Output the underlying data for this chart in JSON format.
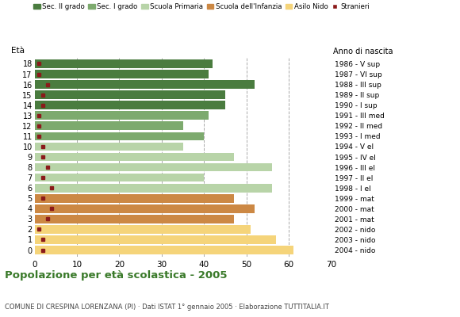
{
  "ages": [
    18,
    17,
    16,
    15,
    14,
    13,
    12,
    11,
    10,
    9,
    8,
    7,
    6,
    5,
    4,
    3,
    2,
    1,
    0
  ],
  "years": [
    "1986 - V sup",
    "1987 - VI sup",
    "1988 - III sup",
    "1989 - II sup",
    "1990 - I sup",
    "1991 - III med",
    "1992 - II med",
    "1993 - I med",
    "1994 - V el",
    "1995 - IV el",
    "1996 - III el",
    "1997 - II el",
    "1998 - I el",
    "1999 - mat",
    "2000 - mat",
    "2001 - mat",
    "2002 - nido",
    "2003 - nido",
    "2004 - nido"
  ],
  "values": [
    42,
    41,
    52,
    45,
    45,
    41,
    35,
    40,
    35,
    47,
    56,
    40,
    56,
    47,
    52,
    47,
    51,
    57,
    61
  ],
  "foreigners": [
    1,
    1,
    3,
    2,
    2,
    1,
    1,
    1,
    2,
    2,
    3,
    2,
    4,
    2,
    4,
    3,
    1,
    2,
    2
  ],
  "bar_colors": {
    "Sec. II grado": "#4a7c3f",
    "Sec. I grado": "#7daa6e",
    "Scuola Primaria": "#b8d4a8",
    "Scuola dell'Infanzia": "#cc8844",
    "Asilo Nido": "#f5d47a"
  },
  "age_to_school": {
    "18": "Sec. II grado",
    "17": "Sec. II grado",
    "16": "Sec. II grado",
    "15": "Sec. II grado",
    "14": "Sec. II grado",
    "13": "Sec. I grado",
    "12": "Sec. I grado",
    "11": "Sec. I grado",
    "10": "Scuola Primaria",
    "9": "Scuola Primaria",
    "8": "Scuola Primaria",
    "7": "Scuola Primaria",
    "6": "Scuola Primaria",
    "5": "Scuola dell'Infanzia",
    "4": "Scuola dell'Infanzia",
    "3": "Scuola dell'Infanzia",
    "2": "Asilo Nido",
    "1": "Asilo Nido",
    "0": "Asilo Nido"
  },
  "foreigner_color": "#8b1a1a",
  "grid_color": "#aaaaaa",
  "title": "Popolazione per età scolastica - 2005",
  "subtitle": "COMUNE DI CRESPINA LORENZANA (PI) · Dati ISTAT 1° gennaio 2005 · Elaborazione TUTTITALIA.IT",
  "xlim": [
    0,
    70
  ],
  "background_color": "#ffffff",
  "bar_height": 0.82
}
